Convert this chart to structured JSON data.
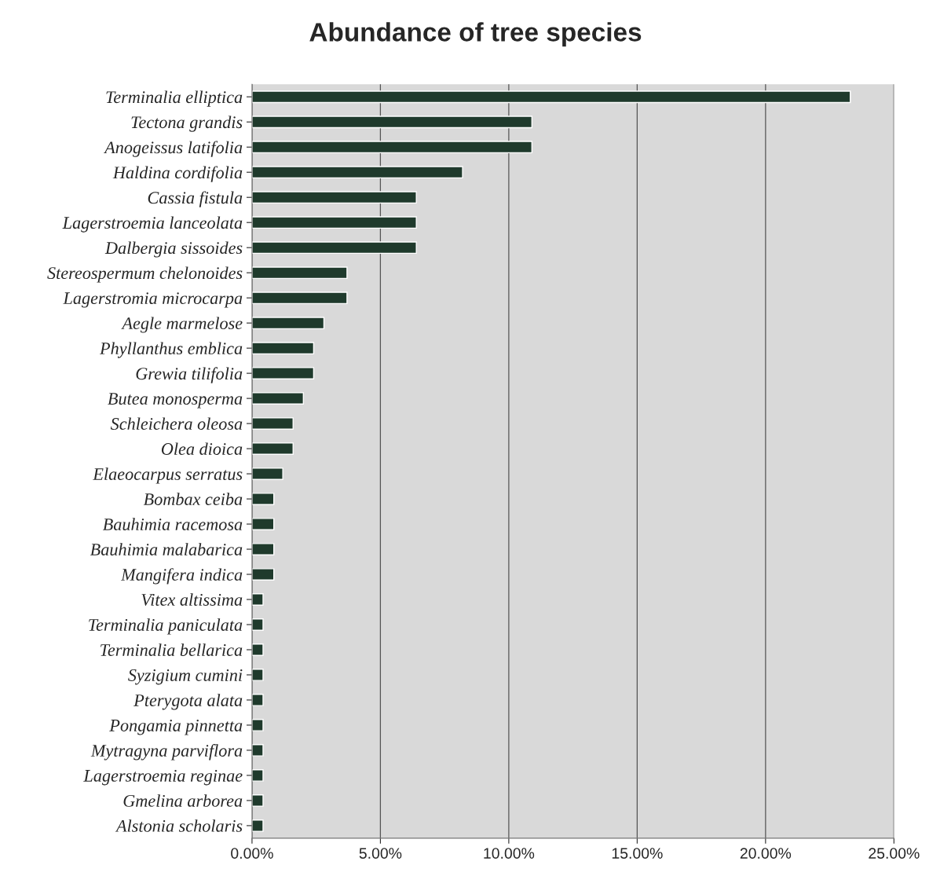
{
  "chart_data": {
    "type": "bar",
    "orientation": "horizontal",
    "title": "Abundance of tree species",
    "categories": [
      "Terminalia elliptica",
      "Tectona grandis",
      "Anogeissus latifolia",
      "Haldina cordifolia",
      "Cassia fistula",
      "Lagerstroemia lanceolata",
      "Dalbergia sissoides",
      "Stereospermum chelonoides",
      "Lagerstromia microcarpa",
      "Aegle marmelose",
      "Phyllanthus emblica",
      "Grewia tilifolia",
      "Butea monosperma",
      "Schleichera oleosa",
      "Olea dioica",
      "Elaeocarpus serratus",
      "Bombax ceiba",
      "Bauhimia racemosa",
      "Bauhimia malabarica",
      "Mangifera indica",
      "Vitex altissima",
      "Terminalia paniculata",
      "Terminalia bellarica",
      "Syzigium cumini",
      "Pterygota alata",
      "Pongamia pinnetta",
      "Mytragyna parviflora",
      "Lagerstroemia reginae",
      "Gmelina arborea",
      "Alstonia scholaris"
    ],
    "values": [
      23.3,
      10.9,
      10.9,
      8.2,
      6.4,
      6.4,
      6.4,
      3.7,
      3.7,
      2.8,
      2.4,
      2.4,
      2.0,
      1.6,
      1.6,
      1.2,
      0.85,
      0.85,
      0.85,
      0.85,
      0.43,
      0.43,
      0.43,
      0.43,
      0.43,
      0.43,
      0.43,
      0.43,
      0.43,
      0.43
    ],
    "color": "#1f3a2c",
    "xlim": [
      0,
      25
    ],
    "xticks": [
      {
        "value": 0,
        "label": "0.00%"
      },
      {
        "value": 5,
        "label": "5.00%"
      },
      {
        "value": 10,
        "label": "10.00%"
      },
      {
        "value": 15,
        "label": "15.00%"
      },
      {
        "value": 20,
        "label": "20.00%"
      },
      {
        "value": 25,
        "label": "25.00%"
      }
    ],
    "grid": "x"
  }
}
